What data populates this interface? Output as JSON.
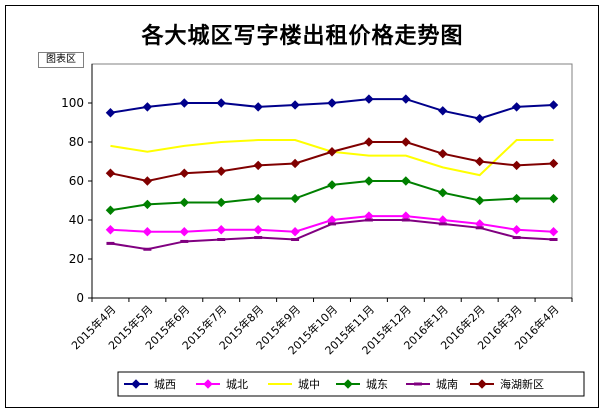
{
  "chart_data": {
    "type": "line",
    "title": "各大城区写字楼出租价格走势图",
    "plot_area_tag": "图表区",
    "categories": [
      "2015年4月",
      "2015年5月",
      "2015年6月",
      "2015年7月",
      "2015年8月",
      "2015年9月",
      "2015年10月",
      "2015年11月",
      "2015年12月",
      "2016年1月",
      "2016年2月",
      "2016年3月",
      "2016年4月"
    ],
    "ylim": [
      0,
      120
    ],
    "yticks": [
      0,
      20,
      40,
      60,
      80,
      100
    ],
    "grid": false,
    "legend_position": "bottom",
    "series": [
      {
        "name": "城西",
        "color": "#00008B",
        "marker": "diamond",
        "values": [
          95,
          98,
          100,
          100,
          98,
          99,
          100,
          102,
          102,
          96,
          92,
          98,
          99
        ]
      },
      {
        "name": "城北",
        "color": "#FF00FF",
        "marker": "diamond",
        "values": [
          35,
          34,
          34,
          35,
          35,
          34,
          40,
          42,
          42,
          40,
          38,
          35,
          34
        ]
      },
      {
        "name": "城中",
        "color": "#FFFF00",
        "marker": "none",
        "values": [
          78,
          75,
          78,
          80,
          81,
          81,
          75,
          73,
          73,
          67,
          63,
          81,
          81
        ]
      },
      {
        "name": "城东",
        "color": "#008000",
        "marker": "diamond",
        "values": [
          45,
          48,
          49,
          49,
          51,
          51,
          58,
          60,
          60,
          54,
          50,
          51,
          51
        ]
      },
      {
        "name": "城南",
        "color": "#800080",
        "marker": "dash",
        "values": [
          28,
          25,
          29,
          30,
          31,
          30,
          38,
          40,
          40,
          38,
          36,
          31,
          30
        ]
      },
      {
        "name": "海湖新区",
        "color": "#800000",
        "marker": "diamond",
        "values": [
          64,
          60,
          64,
          65,
          68,
          69,
          75,
          80,
          80,
          74,
          70,
          68,
          69
        ]
      }
    ]
  }
}
